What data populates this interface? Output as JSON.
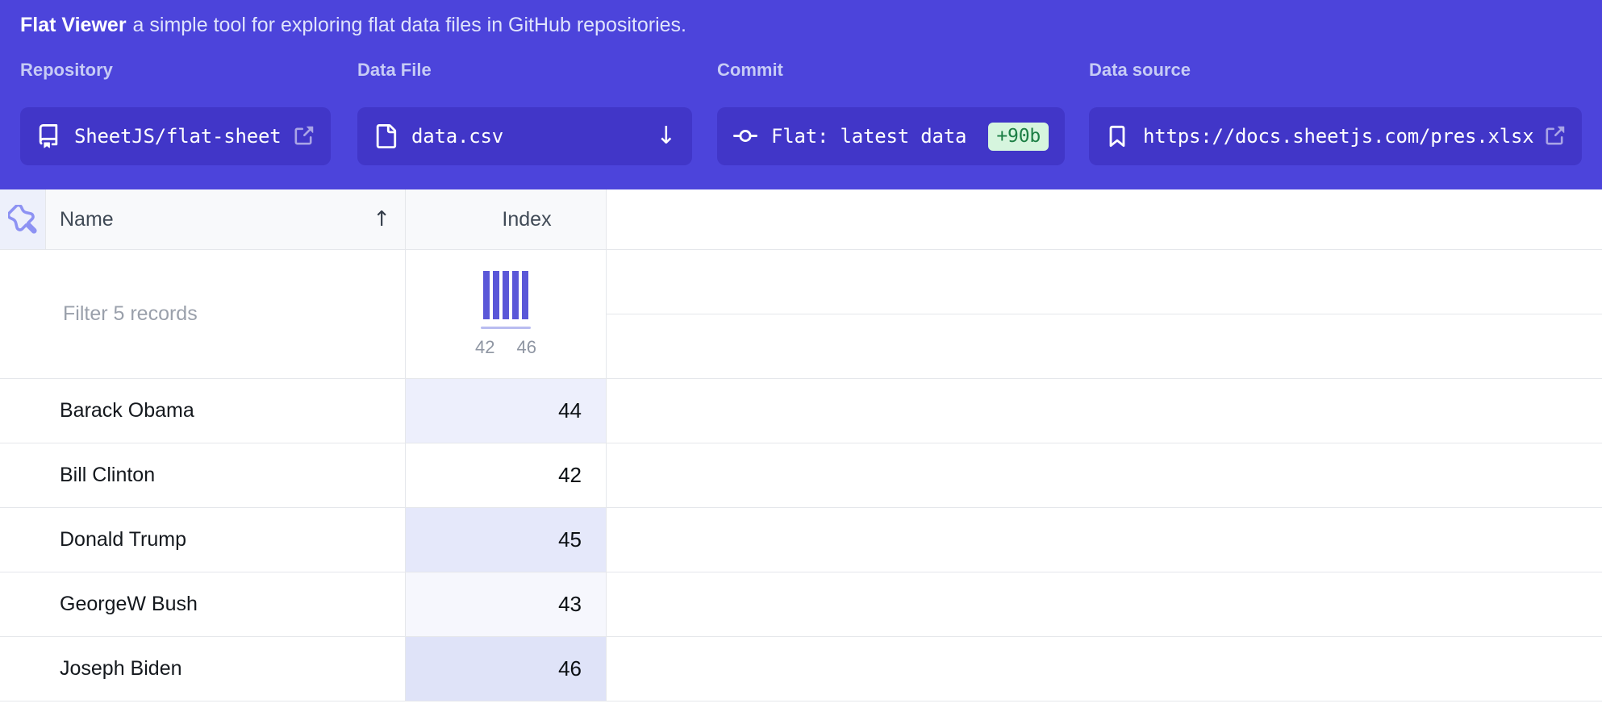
{
  "app": {
    "title": "Flat Viewer",
    "subtitle": "a simple tool for exploring flat data files in GitHub repositories."
  },
  "controls": {
    "repository": {
      "label": "Repository",
      "value": "SheetJS/flat-sheet"
    },
    "data_file": {
      "label": "Data File",
      "value": "data.csv",
      "arrow_glyph": "↓"
    },
    "commit": {
      "label": "Commit",
      "value": "Flat: latest data",
      "badge": "+90b"
    },
    "data_source": {
      "label": "Data source",
      "value": "https://docs.sheetjs.com/pres.xlsx"
    }
  },
  "table": {
    "header": {
      "name_label": "Name",
      "sort_glyph": "↑",
      "index_label": "Index"
    },
    "filter": {
      "placeholder": "Filter 5 records"
    },
    "histogram": {
      "bar_count": 5,
      "min_label": "42",
      "max_label": "46",
      "bar_color": "#5a57d8"
    },
    "rows": [
      {
        "name": "Barack Obama",
        "index": "44",
        "index_bg": "#edeffc"
      },
      {
        "name": "Bill Clinton",
        "index": "42",
        "index_bg": "#ffffff"
      },
      {
        "name": "Donald Trump",
        "index": "45",
        "index_bg": "#e5e8fa"
      },
      {
        "name": "GeorgeW Bush",
        "index": "43",
        "index_bg": "#f6f7fd"
      },
      {
        "name": "Joseph Biden",
        "index": "46",
        "index_bg": "#dfe3f8"
      }
    ]
  },
  "colors": {
    "hero_bg": "#4c44db",
    "control_bg": "#4136c8",
    "badge_bg": "#d6f5de",
    "badge_text": "#1c7e45",
    "pin_column_bg": "#edf0fb",
    "table_head_bg": "#f8f9fb",
    "border": "#e5e7eb",
    "histogram_axis": "#b9bcf1"
  }
}
